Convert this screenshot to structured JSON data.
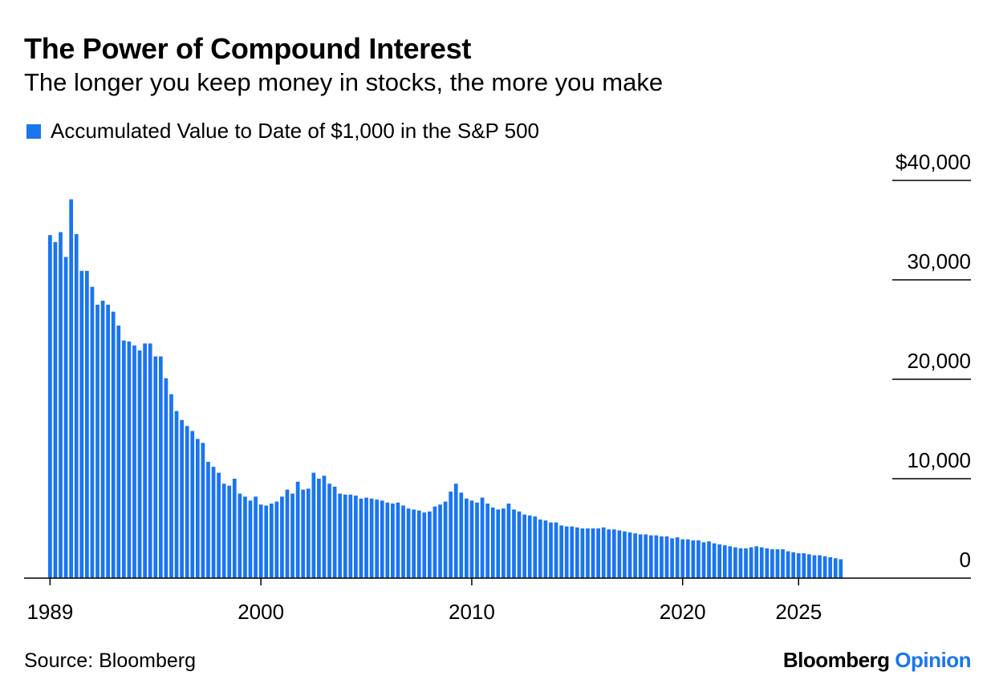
{
  "header": {
    "title": "The Power of Compound Interest",
    "subtitle": "The longer you keep money in stocks, the more you make"
  },
  "legend": {
    "label": "Accumulated Value to Date of $1,000 in the S&P 500"
  },
  "footer": {
    "source": "Source: Bloomberg",
    "brand_main": "Bloomberg",
    "brand_accent": "Opinion"
  },
  "colors": {
    "bar": "#1a75f0",
    "brand_accent": "#1a75f0",
    "axis": "#000000"
  },
  "chart_data": {
    "type": "bar",
    "title": "The Power of Compound Interest",
    "subtitle": "The longer you keep money in stocks, the more you make",
    "series": [
      {
        "name": "Accumulated Value to Date of $1,000 in the S&P 500",
        "x_start": 1989.0,
        "x_step": 0.25,
        "values": [
          34500,
          33800,
          34800,
          32300,
          38100,
          34600,
          30900,
          30900,
          29300,
          27500,
          27900,
          27500,
          26800,
          25400,
          23900,
          23800,
          23400,
          22900,
          23600,
          23600,
          22300,
          22300,
          20100,
          18500,
          16800,
          15900,
          15300,
          14800,
          14000,
          13600,
          11700,
          11200,
          10600,
          9500,
          9300,
          10000,
          8500,
          8200,
          7800,
          8200,
          7400,
          7300,
          7500,
          7700,
          8200,
          8900,
          8500,
          9700,
          8900,
          9000,
          10600,
          10000,
          10300,
          9500,
          9200,
          8500,
          8400,
          8400,
          8300,
          8000,
          8100,
          8000,
          7900,
          7800,
          7600,
          7500,
          7600,
          7300,
          7000,
          6900,
          6800,
          6600,
          6700,
          7200,
          7400,
          7700,
          8700,
          9500,
          8600,
          8000,
          7800,
          7600,
          8100,
          7500,
          7100,
          6900,
          7000,
          7500,
          6900,
          6700,
          6400,
          6300,
          6200,
          5900,
          5800,
          5600,
          5600,
          5300,
          5200,
          5200,
          5100,
          5000,
          5000,
          5000,
          5000,
          5100,
          4900,
          4900,
          4800,
          4700,
          4600,
          4500,
          4400,
          4400,
          4300,
          4300,
          4200,
          4200,
          4000,
          4100,
          3900,
          3900,
          3800,
          3800,
          3600,
          3700,
          3500,
          3400,
          3300,
          3200,
          3100,
          3000,
          3000,
          3100,
          3200,
          3100,
          3000,
          2900,
          2900,
          2900,
          2700,
          2600,
          2500,
          2500,
          2400,
          2300,
          2300,
          2200,
          2100,
          2000,
          1900
        ]
      }
    ],
    "x_tick_labels": [
      "1989",
      "2000",
      "2010",
      "2020",
      "2025"
    ],
    "x_tick_values": [
      1989,
      1999,
      2009,
      2019,
      2024.5
    ],
    "y_tick_labels": [
      "0",
      "10,000",
      "20,000",
      "30,000",
      "$40,000"
    ],
    "y_tick_values": [
      0,
      10000,
      20000,
      30000,
      40000
    ],
    "ylim": [
      0,
      40000
    ],
    "xlabel": "",
    "ylabel": "",
    "grid": false,
    "legend_position": "top-left",
    "y_axis_side": "right"
  }
}
